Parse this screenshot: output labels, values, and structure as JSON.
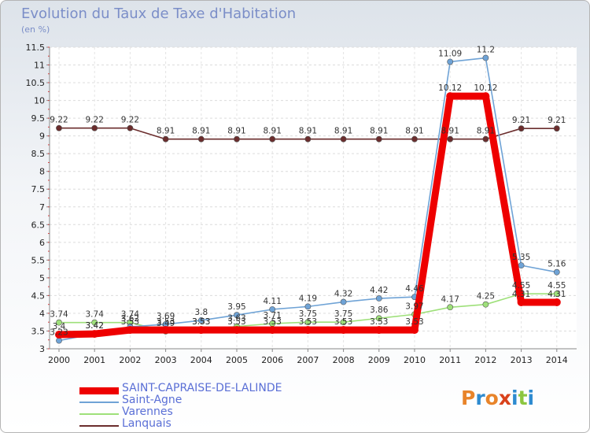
{
  "header": {
    "title": "Evolution du Taux de Taxe d'Habitation",
    "subtitle": "(en %)"
  },
  "logo": {
    "text": "Proxiti",
    "colors": [
      "#e8842a",
      "#2e8bd0",
      "#e8842a",
      "#d9421b",
      "#2e8bd0",
      "#8cc63f",
      "#2e8bd0"
    ]
  },
  "chart_data": {
    "type": "line",
    "title": "Evolution du Taux de Taxe d'Habitation",
    "ylabel": "(en %)",
    "xlabel": "",
    "ylim": [
      3,
      11.5
    ],
    "yticks": [
      "3",
      "3.5",
      "4",
      "4.5",
      "5",
      "5.5",
      "6",
      "6.5",
      "7",
      "7.5",
      "8",
      "8.5",
      "9",
      "9.5",
      "10",
      "10.5",
      "11",
      "11.5"
    ],
    "categories": [
      "2000",
      "2001",
      "2002",
      "2003",
      "2004",
      "2005",
      "2006",
      "2007",
      "2008",
      "2009",
      "2010",
      "2011",
      "2012",
      "2013",
      "2014"
    ],
    "series": [
      {
        "name": "SAINT-CAPRAISE-DE-LALINDE",
        "color": "#ee0000",
        "values": [
          3.4,
          3.42,
          3.53,
          3.53,
          3.53,
          3.53,
          3.53,
          3.53,
          3.53,
          3.53,
          3.53,
          10.12,
          10.12,
          4.31,
          4.31
        ],
        "labels": [
          "3.4",
          "3.42",
          "3.53",
          "3.53",
          "3.53",
          "3.53",
          "3.53",
          "3.53",
          "3.53",
          "3.53",
          "3.53",
          "10.12",
          "10.12",
          "4.31",
          "4.31"
        ]
      },
      {
        "name": "Saint-Agne",
        "color": "#6fa3d6",
        "values": [
          3.23,
          3.42,
          3.62,
          3.69,
          3.8,
          3.95,
          4.11,
          4.19,
          4.32,
          4.42,
          4.46,
          11.09,
          11.2,
          5.35,
          5.16
        ],
        "labels": [
          "3.23",
          "3.42",
          "3.62",
          "3.69",
          "3.8",
          "3.95",
          "4.11",
          "4.19",
          "4.32",
          "4.42",
          "4.46",
          "11.09",
          "11.2",
          "5.35",
          "5.16"
        ]
      },
      {
        "name": "Varennes",
        "color": "#9ee07a",
        "values": [
          3.74,
          3.74,
          3.74,
          3.49,
          3.53,
          3.63,
          3.71,
          3.75,
          3.75,
          3.86,
          3.97,
          4.17,
          4.25,
          4.55,
          4.55
        ],
        "labels": [
          "3.74",
          "3.74",
          "3.74",
          "3.49",
          "3.53",
          "3.63",
          "3.71",
          "3.75",
          "3.75",
          "3.86",
          "3.97",
          "4.17",
          "4.25",
          "4.55",
          "4.55"
        ]
      },
      {
        "name": "Lanquais",
        "color": "#6b2d2d",
        "values": [
          9.22,
          9.22,
          9.22,
          8.91,
          8.91,
          8.91,
          8.91,
          8.91,
          8.91,
          8.91,
          8.91,
          8.91,
          8.91,
          9.21,
          9.21
        ],
        "labels": [
          "9.22",
          "9.22",
          "9.22",
          "8.91",
          "8.91",
          "8.91",
          "8.91",
          "8.91",
          "8.91",
          "8.91",
          "8.91",
          "8.91",
          "8.91",
          "9.21",
          "9.21"
        ]
      }
    ]
  }
}
